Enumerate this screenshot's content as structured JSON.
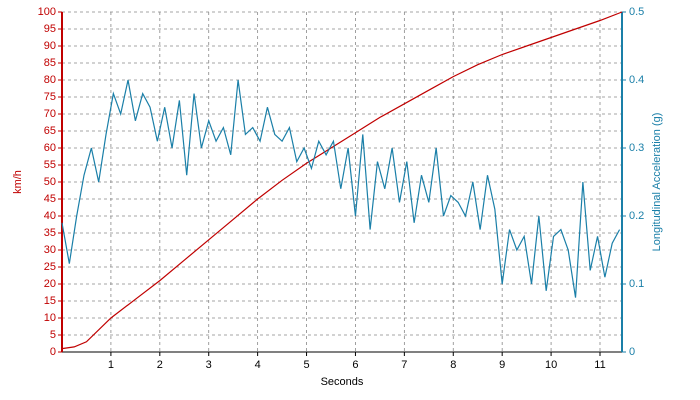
{
  "chart_data": {
    "type": "line",
    "xlabel": "Seconds",
    "ylabel": "km/h",
    "y2label": "Longitudinal Acceleration (g)",
    "xlim": [
      0,
      11.45
    ],
    "xticks": [
      1,
      2,
      3,
      4,
      5,
      6,
      7,
      8,
      9,
      10,
      11
    ],
    "ylim": [
      0,
      100
    ],
    "yticks": [
      0,
      5,
      10,
      15,
      20,
      25,
      30,
      35,
      40,
      45,
      50,
      55,
      60,
      65,
      70,
      75,
      80,
      85,
      90,
      95,
      100
    ],
    "y2lim": [
      0,
      0.5
    ],
    "y2ticks": [
      0,
      0.1,
      0.2,
      0.3,
      0.4,
      0.5
    ],
    "grid": true,
    "series": [
      {
        "color": "#c00000",
        "x": [
          0,
          0.25,
          0.5,
          1,
          1.5,
          2,
          2.5,
          3,
          3.5,
          4,
          4.5,
          5,
          5.5,
          6,
          6.5,
          7,
          7.5,
          8,
          8.5,
          9,
          9.5,
          10,
          10.5,
          11,
          11.45
        ],
        "values": [
          1,
          1.5,
          3,
          10,
          15.5,
          21,
          27,
          33,
          39,
          45,
          50.5,
          55.5,
          60,
          64.5,
          69,
          73,
          77,
          81,
          84.5,
          87.5,
          90,
          92.5,
          95,
          97.5,
          100
        ]
      },
      {
        "color": "#1a7fa8",
        "axis": "y2",
        "x": [
          0,
          0.15,
          0.3,
          0.45,
          0.6,
          0.75,
          0.9,
          1.05,
          1.2,
          1.35,
          1.5,
          1.65,
          1.8,
          1.95,
          2.1,
          2.25,
          2.4,
          2.55,
          2.7,
          2.85,
          3.0,
          3.15,
          3.3,
          3.45,
          3.6,
          3.75,
          3.9,
          4.05,
          4.2,
          4.35,
          4.5,
          4.65,
          4.8,
          4.95,
          5.1,
          5.25,
          5.4,
          5.55,
          5.7,
          5.85,
          6.0,
          6.15,
          6.3,
          6.45,
          6.6,
          6.75,
          6.9,
          7.05,
          7.2,
          7.35,
          7.5,
          7.65,
          7.8,
          7.95,
          8.1,
          8.25,
          8.4,
          8.55,
          8.7,
          8.85,
          9.0,
          9.15,
          9.3,
          9.45,
          9.6,
          9.75,
          9.9,
          10.05,
          10.2,
          10.35,
          10.5,
          10.65,
          10.8,
          10.95,
          11.1,
          11.25,
          11.4
        ],
        "values": [
          0.19,
          0.13,
          0.2,
          0.26,
          0.3,
          0.25,
          0.32,
          0.38,
          0.35,
          0.4,
          0.34,
          0.38,
          0.36,
          0.31,
          0.36,
          0.3,
          0.37,
          0.26,
          0.38,
          0.3,
          0.34,
          0.31,
          0.33,
          0.29,
          0.4,
          0.32,
          0.33,
          0.31,
          0.36,
          0.32,
          0.31,
          0.33,
          0.28,
          0.3,
          0.27,
          0.31,
          0.29,
          0.31,
          0.24,
          0.3,
          0.2,
          0.32,
          0.18,
          0.28,
          0.24,
          0.3,
          0.22,
          0.28,
          0.19,
          0.26,
          0.22,
          0.3,
          0.2,
          0.23,
          0.22,
          0.2,
          0.25,
          0.18,
          0.26,
          0.21,
          0.1,
          0.18,
          0.15,
          0.17,
          0.1,
          0.2,
          0.09,
          0.17,
          0.18,
          0.15,
          0.08,
          0.25,
          0.12,
          0.17,
          0.11,
          0.16,
          0.18
        ]
      }
    ]
  }
}
